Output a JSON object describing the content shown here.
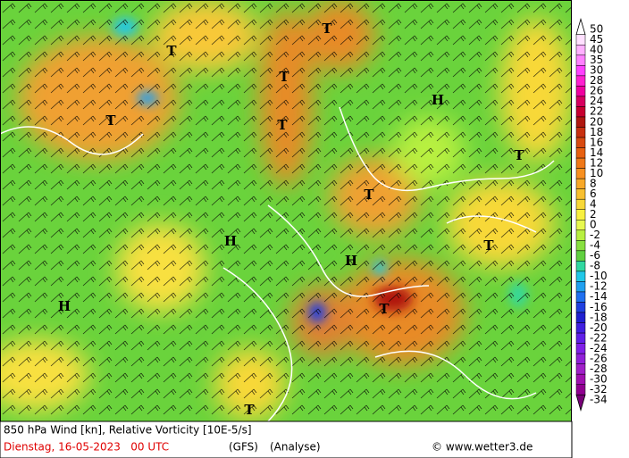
{
  "map": {
    "symbols": [
      "T",
      "T",
      "T",
      "T",
      "T",
      "T",
      "T",
      "T",
      "T",
      "T",
      "H",
      "H",
      "H",
      "H"
    ],
    "colorbar": {
      "ticks": [
        50,
        45,
        40,
        35,
        30,
        28,
        26,
        24,
        22,
        20,
        18,
        16,
        14,
        12,
        10,
        8,
        6,
        4,
        2,
        0,
        -2,
        -4,
        -6,
        -8,
        -10,
        -12,
        -14,
        -16,
        -18,
        -20,
        -22,
        -24,
        -26,
        -28,
        -30,
        -32,
        -34
      ],
      "colors": [
        "#ffffff",
        "#ffe0ff",
        "#ffb0ff",
        "#ff80ff",
        "#ff40ff",
        "#ff20d0",
        "#f000a0",
        "#d80060",
        "#c80030",
        "#b01810",
        "#c83010",
        "#d84a10",
        "#e86010",
        "#f07818",
        "#f89020",
        "#f8a828",
        "#f8c030",
        "#f8d838",
        "#f8f040",
        "#e8f850",
        "#b8f040",
        "#88e040",
        "#60d040",
        "#30d8a0",
        "#20c8e8",
        "#20a0f0",
        "#2070f0",
        "#2040e0",
        "#2020d0",
        "#4020e0",
        "#6020e8",
        "#8020e8",
        "#9020d8",
        "#a020c8",
        "#a010b0",
        "#900090",
        "#780078"
      ]
    },
    "footer": {
      "title": "850 hPa Wind [kn], Relative Vorticity [10E-5/s]",
      "date": "Dienstag, 16-05-2023   00 UTC",
      "model": "(GFS)",
      "run": "(Analyse)",
      "copyright": "© www.wetter3.de"
    }
  }
}
